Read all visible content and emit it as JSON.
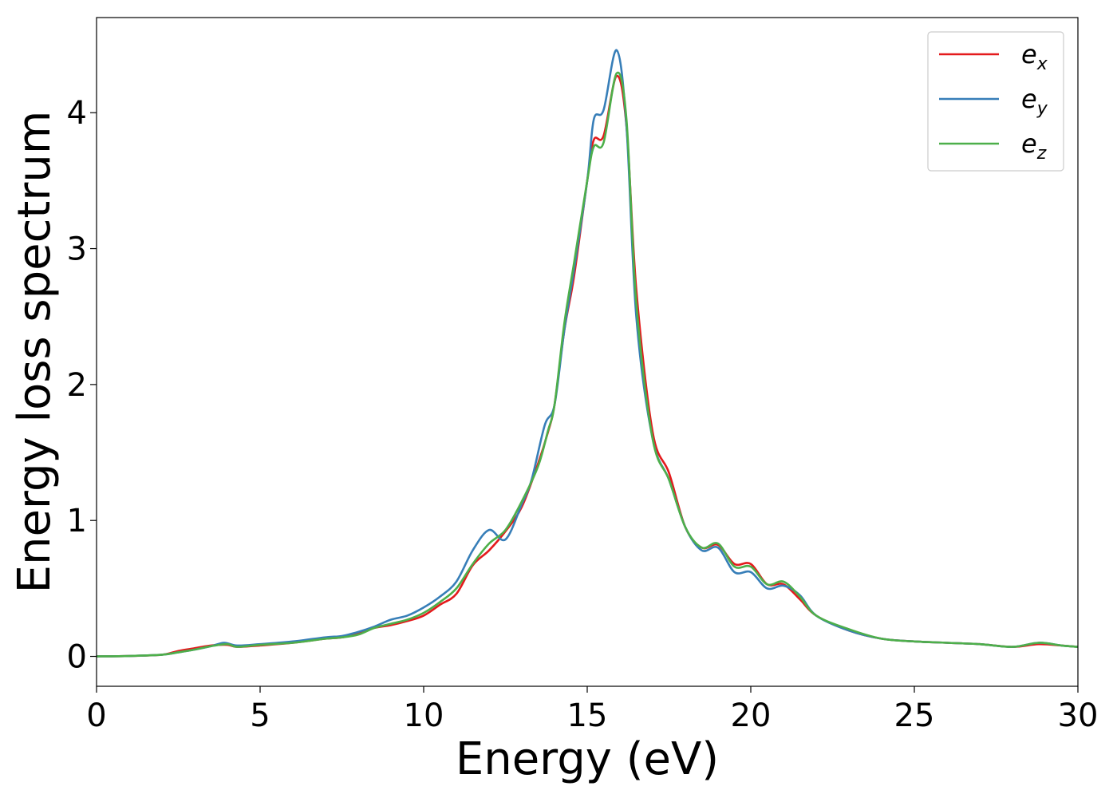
{
  "chart_data": {
    "type": "line",
    "xlabel": "Energy (eV)",
    "ylabel": "Energy loss spectrum",
    "xlim": [
      0,
      30
    ],
    "ylim": [
      -0.22,
      4.7
    ],
    "xticks": [
      0,
      5,
      10,
      15,
      20,
      25,
      30
    ],
    "yticks": [
      0,
      1,
      2,
      3,
      4
    ],
    "grid": false,
    "legend_position": "top-right",
    "series": [
      {
        "name": "e_x",
        "legend_main": "e",
        "legend_sub": "x",
        "color": "#e41a1c",
        "x": [
          0,
          1,
          2,
          2.5,
          3,
          3.5,
          4,
          4.3,
          5,
          6,
          7,
          7.5,
          8,
          8.5,
          9,
          9.5,
          10,
          10.5,
          11,
          11.5,
          12,
          12.5,
          13,
          13.5,
          13.8,
          14,
          14.3,
          14.6,
          15,
          15.2,
          15.5,
          15.9,
          16.2,
          16.5,
          17,
          17.5,
          18,
          18.5,
          19,
          19.5,
          20,
          20.5,
          21,
          21.5,
          22,
          23,
          24,
          25,
          26,
          27,
          28,
          28.8,
          29.5,
          30
        ],
        "values": [
          0,
          0.003,
          0.012,
          0.04,
          0.06,
          0.08,
          0.085,
          0.07,
          0.08,
          0.1,
          0.13,
          0.14,
          0.17,
          0.21,
          0.23,
          0.26,
          0.3,
          0.38,
          0.46,
          0.67,
          0.78,
          0.92,
          1.1,
          1.42,
          1.65,
          1.85,
          2.4,
          2.8,
          3.5,
          3.8,
          3.83,
          4.27,
          3.9,
          2.7,
          1.65,
          1.35,
          0.95,
          0.8,
          0.82,
          0.68,
          0.68,
          0.53,
          0.53,
          0.42,
          0.3,
          0.19,
          0.13,
          0.11,
          0.1,
          0.09,
          0.07,
          0.09,
          0.08,
          0.07
        ]
      },
      {
        "name": "e_y",
        "legend_main": "e",
        "legend_sub": "y",
        "color": "#377eb8",
        "x": [
          0,
          1,
          2,
          2.5,
          3,
          3.5,
          3.9,
          4.3,
          5,
          6,
          7,
          7.5,
          8,
          8.5,
          9,
          9.5,
          10,
          10.5,
          11,
          11.5,
          12,
          12.5,
          13,
          13.3,
          13.7,
          14,
          14.3,
          14.6,
          15,
          15.2,
          15.5,
          15.9,
          16.2,
          16.5,
          17,
          17.5,
          18,
          18.5,
          19,
          19.5,
          20,
          20.5,
          21,
          21.5,
          22,
          23,
          24,
          25,
          26,
          27,
          28,
          28.8,
          29.5,
          30
        ],
        "values": [
          0,
          0.003,
          0.012,
          0.03,
          0.05,
          0.075,
          0.1,
          0.08,
          0.09,
          0.11,
          0.14,
          0.15,
          0.18,
          0.22,
          0.27,
          0.3,
          0.36,
          0.44,
          0.55,
          0.78,
          0.93,
          0.86,
          1.12,
          1.3,
          1.7,
          1.85,
          2.4,
          2.85,
          3.5,
          3.95,
          4.02,
          4.46,
          3.9,
          2.5,
          1.6,
          1.3,
          0.95,
          0.78,
          0.8,
          0.62,
          0.62,
          0.5,
          0.52,
          0.45,
          0.3,
          0.19,
          0.13,
          0.11,
          0.1,
          0.09,
          0.07,
          0.1,
          0.08,
          0.07
        ]
      },
      {
        "name": "e_z",
        "legend_main": "e",
        "legend_sub": "z",
        "color": "#4daf4a",
        "x": [
          0,
          1,
          2,
          2.5,
          3,
          3.5,
          4,
          4.3,
          5,
          6,
          7,
          7.5,
          8,
          8.5,
          9,
          9.5,
          10,
          10.5,
          11,
          11.5,
          12,
          12.5,
          13,
          13.5,
          13.8,
          14,
          14.3,
          14.6,
          15,
          15.2,
          15.5,
          15.9,
          16.2,
          16.5,
          17,
          17.5,
          18,
          18.5,
          19,
          19.5,
          20,
          20.5,
          21,
          21.5,
          22,
          23,
          24,
          25,
          26,
          27,
          28,
          28.8,
          29.5,
          30
        ],
        "values": [
          0,
          0.003,
          0.012,
          0.03,
          0.05,
          0.075,
          0.09,
          0.07,
          0.085,
          0.1,
          0.13,
          0.14,
          0.16,
          0.21,
          0.24,
          0.27,
          0.32,
          0.4,
          0.5,
          0.68,
          0.83,
          0.93,
          1.14,
          1.4,
          1.66,
          1.85,
          2.45,
          2.9,
          3.5,
          3.75,
          3.78,
          4.29,
          3.95,
          2.6,
          1.6,
          1.3,
          0.95,
          0.8,
          0.83,
          0.66,
          0.66,
          0.53,
          0.55,
          0.44,
          0.3,
          0.2,
          0.13,
          0.11,
          0.1,
          0.09,
          0.07,
          0.1,
          0.08,
          0.07
        ]
      }
    ]
  }
}
